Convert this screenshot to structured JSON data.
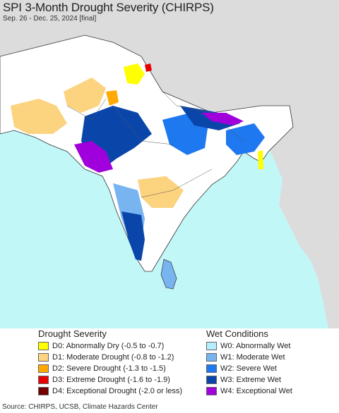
{
  "title": "SPI 3-Month Drought Severity (CHIRPS)",
  "subtitle": "Sep. 26 - Dec. 25, 2024 [final]",
  "map": {
    "ocean_color": "#c2f7f7",
    "land_neutral_color": "#ffffff",
    "outside_region_color": "#dcdcdc",
    "border_color": "#333333"
  },
  "legend": {
    "drought_heading": "Drought Severity",
    "wet_heading": "Wet Conditions",
    "drought": [
      {
        "code": "D0",
        "label": "D0: Abnormally Dry (-0.5 to -0.7)",
        "color": "#ffff00"
      },
      {
        "code": "D1",
        "label": "D1: Moderate Drought (-0.8 to -1.2)",
        "color": "#fcd37f"
      },
      {
        "code": "D2",
        "label": "D2: Severe Drought (-1.3 to -1.5)",
        "color": "#ffaa00"
      },
      {
        "code": "D3",
        "label": "D3: Extreme Drought (-1.6 to -1.9)",
        "color": "#e60000"
      },
      {
        "code": "D4",
        "label": "D4: Exceptional Drought (-2.0 or less)",
        "color": "#730000"
      }
    ],
    "wet": [
      {
        "code": "W0",
        "label": "W0: Abnormally Wet",
        "color": "#b4eeff"
      },
      {
        "code": "W1",
        "label": "W1: Moderate Wet",
        "color": "#78b4f0"
      },
      {
        "code": "W2",
        "label": "W2: Severe Wet",
        "color": "#1e78f0"
      },
      {
        "code": "W3",
        "label": "W3: Extreme Wet",
        "color": "#0a46aa"
      },
      {
        "code": "W4",
        "label": "W4: Exceptional Wet",
        "color": "#a000dc"
      }
    ]
  },
  "source": "Source: CHIRPS, UCSB, Climate Hazards Center"
}
